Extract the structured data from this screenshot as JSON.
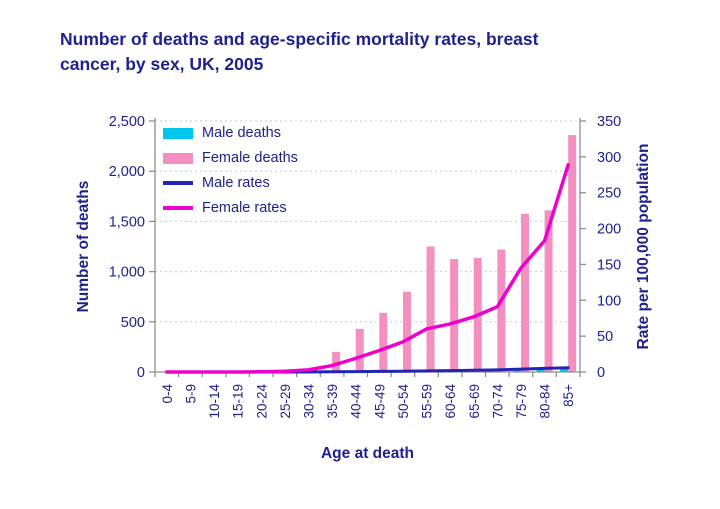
{
  "header": {
    "title_lines": [
      "Number of deaths and age-specific mortality rates, breast",
      "cancer, by sex, UK, 2005"
    ]
  },
  "chart_data": {
    "type": "combo-bar-line",
    "title": "Number of deaths and age-specific mortality rates, breast cancer, by sex, UK, 2005",
    "categories": [
      "0-4",
      "5-9",
      "10-14",
      "15-19",
      "20-24",
      "25-29",
      "30-34",
      "35-39",
      "40-44",
      "45-49",
      "50-54",
      "55-59",
      "60-64",
      "65-69",
      "70-74",
      "75-79",
      "80-84",
      "85+"
    ],
    "series": [
      {
        "name": "Male deaths",
        "type": "bar",
        "axis": "left",
        "color": "#00c6ef",
        "values": [
          0,
          0,
          0,
          0,
          0,
          0,
          0,
          0,
          5,
          5,
          10,
          10,
          15,
          15,
          20,
          25,
          35,
          45
        ]
      },
      {
        "name": "Female deaths",
        "type": "bar",
        "axis": "left",
        "color": "#f48fc1",
        "values": [
          0,
          0,
          0,
          0,
          0,
          10,
          45,
          200,
          430,
          590,
          800,
          1250,
          1125,
          1135,
          1220,
          1575,
          1610,
          2360
        ]
      },
      {
        "name": "Male rates",
        "type": "line",
        "axis": "right",
        "color": "#2323b4",
        "values": [
          0,
          0,
          0,
          0,
          0,
          0,
          0,
          0.3,
          0.5,
          0.8,
          1,
          1.5,
          2,
          2.5,
          3,
          4,
          5,
          6
        ]
      },
      {
        "name": "Female rates",
        "type": "line",
        "axis": "right",
        "color": "#ee00cd",
        "values": [
          0,
          0,
          0,
          0,
          0.3,
          1,
          3,
          9,
          19,
          30,
          42,
          60,
          67,
          77,
          91,
          145,
          183,
          289
        ]
      }
    ],
    "xlabel": "Age at death",
    "ylabel_left": "Number of deaths",
    "ylabel_right": "Rate per 100,000 population",
    "ylim_left": [
      0,
      2500
    ],
    "ylim_right": [
      0,
      350
    ],
    "yticks_left": [
      "0",
      "500",
      "1,000",
      "1,500",
      "2,000",
      "2,500"
    ],
    "yticks_right": [
      "0",
      "50",
      "100",
      "150",
      "200",
      "250",
      "300",
      "350"
    ],
    "grid": "horizontal-dashed",
    "legend_position": "top-left-inside"
  },
  "colors": {
    "text_navy": "#20208f",
    "axis_line": "#8f8f8f",
    "gridline": "#c9c9c9",
    "background": "#ffffff"
  }
}
